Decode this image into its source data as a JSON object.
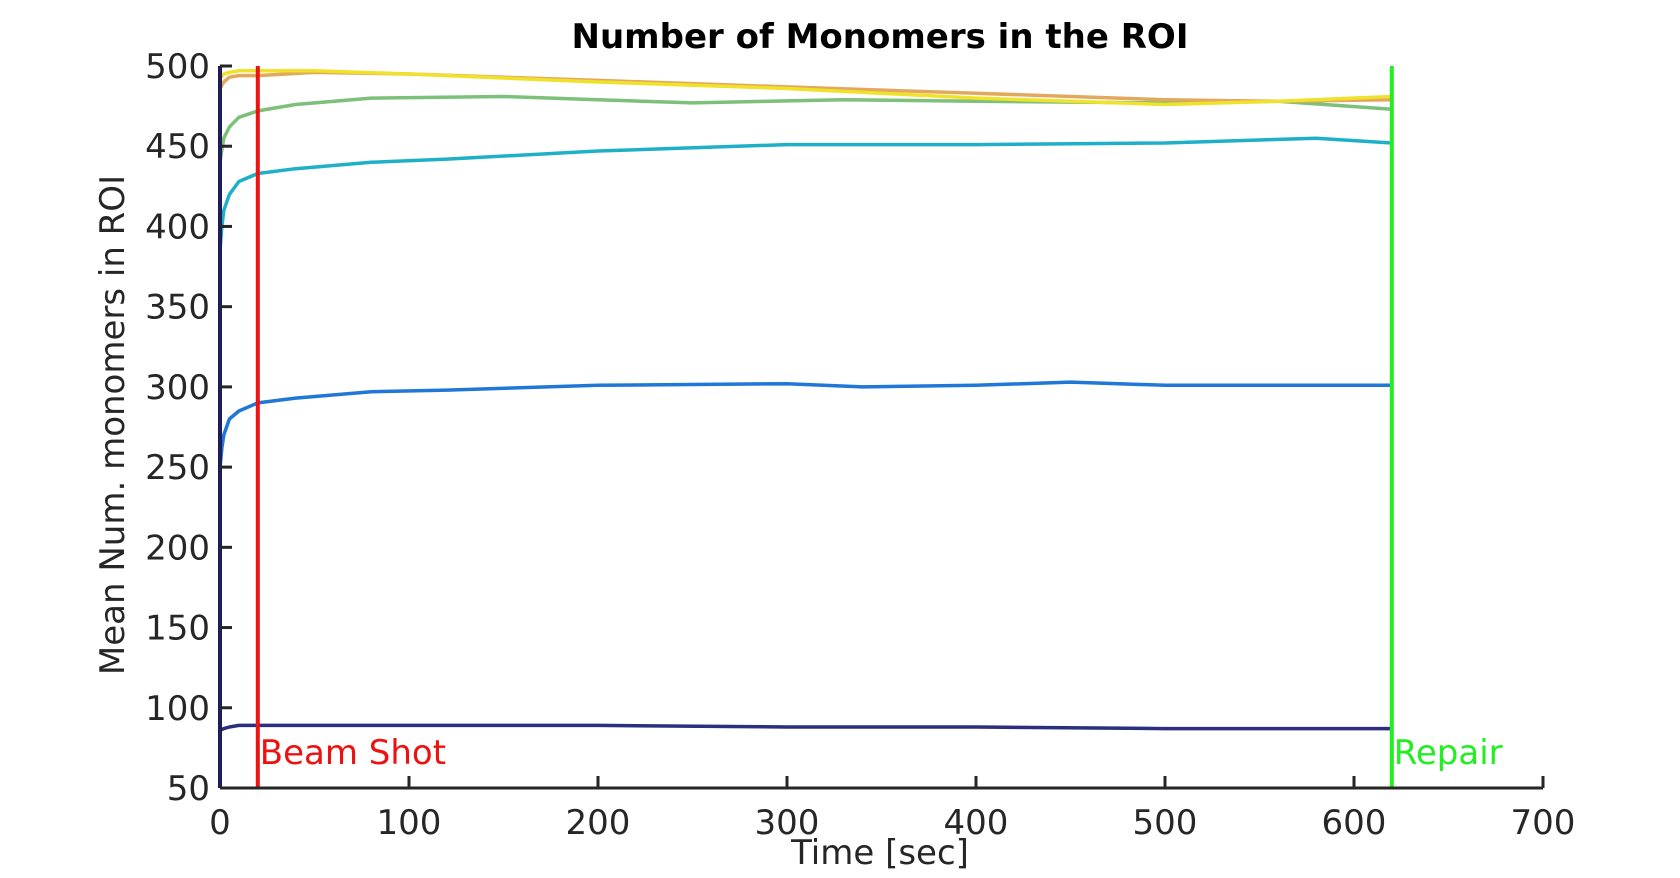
{
  "chart_data": {
    "type": "line",
    "title": "Number of Monomers in the ROI",
    "xlabel": "Time [sec]",
    "ylabel": "Mean Num. monomers in ROI",
    "xlim": [
      0,
      700
    ],
    "ylim": [
      50,
      500
    ],
    "xticks": [
      0,
      100,
      200,
      300,
      400,
      500,
      600,
      700
    ],
    "yticks": [
      50,
      100,
      150,
      200,
      250,
      300,
      350,
      400,
      450,
      500
    ],
    "grid": false,
    "legend": "none",
    "series": [
      {
        "color": "#2a2f7f",
        "x": [
          0,
          2,
          5,
          10,
          20,
          50,
          100,
          200,
          300,
          400,
          500,
          600,
          620
        ],
        "y": [
          86,
          87,
          88,
          89,
          89,
          89,
          89,
          89,
          88,
          88,
          87,
          87,
          87
        ]
      },
      {
        "color": "#1f78d8",
        "x": [
          0,
          1,
          2,
          5,
          10,
          20,
          40,
          80,
          120,
          200,
          300,
          340,
          400,
          450,
          500,
          600,
          620
        ],
        "y": [
          250,
          262,
          270,
          280,
          285,
          290,
          293,
          297,
          298,
          301,
          302,
          300,
          301,
          303,
          301,
          301,
          301
        ]
      },
      {
        "color": "#1fb0c8",
        "x": [
          0,
          1,
          2,
          5,
          10,
          20,
          40,
          80,
          120,
          200,
          300,
          400,
          500,
          580,
          620
        ],
        "y": [
          385,
          400,
          410,
          420,
          428,
          433,
          436,
          440,
          442,
          447,
          451,
          451,
          452,
          455,
          452
        ]
      },
      {
        "color": "#7cc07a",
        "x": [
          0,
          1,
          2,
          5,
          10,
          20,
          40,
          80,
          150,
          200,
          250,
          330,
          400,
          500,
          560,
          620
        ],
        "y": [
          440,
          448,
          455,
          462,
          468,
          472,
          476,
          480,
          481,
          479,
          477,
          479,
          478,
          477,
          478,
          473
        ]
      },
      {
        "color": "#e3a85e",
        "x": [
          0,
          2,
          5,
          10,
          20,
          50,
          100,
          200,
          300,
          400,
          500,
          560,
          620
        ],
        "y": [
          486,
          490,
          493,
          494,
          494,
          496,
          495,
          491,
          487,
          483,
          479,
          478,
          479
        ]
      },
      {
        "color": "#f0e12a",
        "x": [
          0,
          2,
          5,
          10,
          20,
          50,
          100,
          200,
          300,
          400,
          450,
          500,
          560,
          620
        ],
        "y": [
          492,
          495,
          496,
          497,
          497,
          497,
          495,
          490,
          486,
          480,
          478,
          476,
          478,
          481
        ]
      }
    ],
    "annotations": [
      {
        "x": 0,
        "color": "#0000dd",
        "label": ""
      },
      {
        "x": 20,
        "color": "#ee1111",
        "label": "Beam Shot"
      },
      {
        "x": 620,
        "color": "#22ee22",
        "label": "Repair"
      }
    ]
  }
}
